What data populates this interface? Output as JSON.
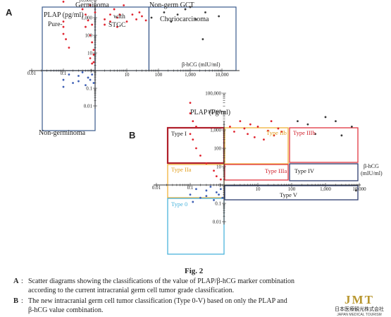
{
  "colors": {
    "red_points": "#e0242f",
    "blue_points": "#3d5fb5",
    "dark_points": "#3a3a3a",
    "frame_blue": "#3a5a8c",
    "type_I": "#b01e2a",
    "type_II": "#f2b23a",
    "type_III": "#e0343e",
    "type_IV": "#2d3b6e",
    "type_0": "#4ab4dc"
  },
  "chart_data": [
    {
      "panel": "A",
      "type": "scatter",
      "x_scale": "log",
      "y_scale": "log",
      "xlabel": "β-hCG (mIU/ml)",
      "ylabel": "PLAP (pg/ml)",
      "xlim": [
        0.01,
        100000
      ],
      "ylim": [
        0.01,
        100000
      ],
      "x_ticks": [
        "0.01",
        "0.1",
        "1",
        "10",
        "100",
        "1,000",
        "10,000"
      ],
      "y_ticks": [
        "0.01",
        "0.1",
        "1",
        "10",
        "100",
        "1,000",
        "10,000"
      ],
      "regions": [
        {
          "group": "Germinoma",
          "label": "Pure",
          "x": [
            0.01,
            1
          ],
          "y": [
            1,
            100000
          ]
        },
        {
          "group": "Germinoma",
          "label": "with STGC",
          "x": [
            1,
            50
          ],
          "y": [
            1,
            100000
          ]
        },
        {
          "group": "Non-germ GCT",
          "label": "Choriocarcinoma",
          "x": [
            50,
            100000
          ],
          "y": [
            1,
            100000
          ]
        },
        {
          "group": "Non-germinoma",
          "label": "",
          "x": [
            0.01,
            1
          ],
          "y": [
            0.01,
            1
          ]
        }
      ],
      "series": [
        {
          "color_key": "red_points",
          "points": [
            [
              0.1,
              30000
            ],
            [
              0.1,
              8000
            ],
            [
              0.1,
              600
            ],
            [
              0.1,
              300
            ],
            [
              0.1,
              120
            ],
            [
              0.12,
              60
            ],
            [
              0.15,
              20
            ],
            [
              0.4,
              3000
            ],
            [
              0.5,
              1500
            ],
            [
              0.6,
              700
            ],
            [
              0.5,
              300
            ],
            [
              0.7,
              100
            ],
            [
              0.8,
              40
            ],
            [
              0.9,
              15
            ],
            [
              0.9,
              8
            ],
            [
              0.7,
              5
            ],
            [
              0.9,
              3
            ],
            [
              0.8,
              2.5
            ],
            [
              0.9,
              12000
            ],
            [
              0.7,
              5000
            ],
            [
              0.8,
              400
            ],
            [
              1,
              2000
            ],
            [
              2,
              800
            ],
            [
              2,
              400
            ],
            [
              3,
              1500
            ],
            [
              3,
              600
            ],
            [
              4,
              3000
            ],
            [
              5,
              1000
            ],
            [
              5,
              300
            ],
            [
              6,
              1500
            ],
            [
              8,
              5000
            ],
            [
              10,
              600
            ],
            [
              15,
              1500
            ],
            [
              20,
              800
            ],
            [
              25,
              2000
            ],
            [
              30,
              1200
            ],
            [
              40,
              700
            ]
          ]
        },
        {
          "color_key": "blue_points",
          "points": [
            [
              0.1,
              0.3
            ],
            [
              0.1,
              0.12
            ],
            [
              0.15,
              0.6
            ],
            [
              0.2,
              0.2
            ],
            [
              0.3,
              0.5
            ],
            [
              0.3,
              0.25
            ],
            [
              0.4,
              0.8
            ],
            [
              0.5,
              0.15
            ],
            [
              0.6,
              0.4
            ],
            [
              0.7,
              0.3
            ],
            [
              0.8,
              0.6
            ],
            [
              0.9,
              0.2
            ]
          ]
        },
        {
          "color_key": "dark_points",
          "points": [
            [
              60,
              1000
            ],
            [
              150,
              2000
            ],
            [
              250,
              600
            ],
            [
              400,
              1500
            ],
            [
              700,
              3000
            ],
            [
              1000,
              4000
            ],
            [
              1500,
              800
            ],
            [
              3000,
              2000
            ],
            [
              8000,
              1200
            ],
            [
              2500,
              60
            ]
          ]
        }
      ]
    },
    {
      "panel": "B",
      "type": "scatter",
      "x_scale": "log",
      "y_scale": "log",
      "xlabel": "β-hCG (mIU/ml)",
      "ylabel": "PLAP (Pg/ml)",
      "xlim": [
        0.01,
        10000
      ],
      "ylim": [
        0.01,
        100000
      ],
      "x_ticks": [
        "0.01",
        "0.1",
        "1",
        "10",
        "100",
        "1,000",
        "10,000"
      ],
      "y_ticks": [
        "0.01",
        "0.1",
        "1",
        "10",
        "100",
        "1,000",
        "10,000",
        "100,000"
      ],
      "regions": [
        {
          "label": "Type I",
          "color_key": "type_I",
          "x": [
            0.01,
            1
          ],
          "y": [
            1000,
            100000
          ]
        },
        {
          "label": "Type IIa",
          "color_key": "type_II",
          "x": [
            0.01,
            1
          ],
          "y": [
            1,
            1000
          ]
        },
        {
          "label": "Type IIb",
          "color_key": "type_II",
          "x": [
            1,
            100
          ],
          "y": [
            1,
            100000
          ]
        },
        {
          "label": "Type IIIa",
          "color_key": "type_III",
          "x": [
            1,
            100
          ],
          "y": [
            1,
            1000
          ]
        },
        {
          "label": "Type IIIb",
          "color_key": "type_III",
          "x": [
            100,
            10000
          ],
          "y": [
            1,
            100000
          ]
        },
        {
          "label": "Type IV",
          "color_key": "type_IV",
          "x": [
            100,
            10000
          ],
          "y": [
            1,
            1000
          ]
        },
        {
          "label": "Type V",
          "color_key": "type_IV",
          "x": [
            1,
            10000
          ],
          "y": [
            0.01,
            1
          ]
        },
        {
          "label": "Type 0",
          "color_key": "type_0",
          "x": [
            0.01,
            1
          ],
          "y": [
            0.01,
            1
          ]
        }
      ],
      "series": [
        {
          "color_key": "red_points",
          "points": [
            [
              0.1,
              30000
            ],
            [
              0.1,
              8000
            ],
            [
              0.12,
              3000
            ],
            [
              0.15,
              1500
            ],
            [
              0.1,
              600
            ],
            [
              0.12,
              300
            ],
            [
              0.15,
              100
            ],
            [
              0.2,
              40
            ],
            [
              0.3,
              15
            ],
            [
              0.5,
              6
            ],
            [
              0.6,
              3
            ],
            [
              0.8,
              2
            ],
            [
              1.5,
              1500
            ],
            [
              2,
              800
            ],
            [
              3,
              3000
            ],
            [
              4,
              1200
            ],
            [
              5,
              600
            ],
            [
              6,
              2000
            ],
            [
              8,
              400
            ],
            [
              10,
              1500
            ],
            [
              15,
              300
            ],
            [
              20,
              900
            ],
            [
              25,
              3000
            ],
            [
              30,
              500
            ],
            [
              40,
              1200
            ],
            [
              50,
              800
            ]
          ]
        },
        {
          "color_key": "blue_points",
          "points": [
            [
              0.1,
              0.3
            ],
            [
              0.12,
              0.12
            ],
            [
              0.15,
              0.6
            ],
            [
              0.2,
              0.2
            ],
            [
              0.3,
              0.5
            ],
            [
              0.3,
              0.25
            ],
            [
              0.4,
              0.8
            ],
            [
              0.5,
              0.15
            ],
            [
              0.6,
              0.4
            ],
            [
              0.7,
              0.3
            ],
            [
              0.8,
              0.6
            ],
            [
              0.9,
              0.2
            ]
          ]
        },
        {
          "color_key": "dark_points",
          "points": [
            [
              150,
              3000
            ],
            [
              300,
              2000
            ],
            [
              500,
              600
            ],
            [
              1000,
              5000
            ],
            [
              2000,
              3000
            ],
            [
              3000,
              500
            ],
            [
              6000,
              1500
            ],
            [
              8000,
              0.5
            ]
          ]
        }
      ]
    }
  ],
  "labels": {
    "panel_a": "A",
    "panel_b": "B",
    "a_germinoma": "Germinoma",
    "a_nongerm": "Non-germ GCT",
    "a_plap": "PLAP (pg/ml)",
    "a_pure": "Pure-",
    "a_with": "with",
    "a_stgc": "STGC",
    "a_chorio": "Choriocarcinoma",
    "a_xlabel": "β-hCG (mIU/ml)",
    "a_nongerminoma": "Non-germinoma",
    "b_plap": "PLAP (Pg/ml)",
    "b_xlabel_1": "β-hCG",
    "b_xlabel_2": "(mIU/ml)",
    "type_I": "Type I",
    "type_IIa": "Type IIa",
    "type_IIb": "Type IIb",
    "type_IIIa": "Type IIIa",
    "type_IIIb": "Type IIIb",
    "type_IV": "Type IV",
    "type_V": "Type V",
    "type_0": "Type 0"
  },
  "caption": {
    "fig_title": "Fig. 2",
    "a_key": "A",
    "a_text_1": "Scatter diagrams showing the classifications of the value of PLAP/β-hCG marker combination",
    "a_text_2": "according to the current intracranial germ cell tumor grade classification.",
    "b_key": "B",
    "b_text_1": "The new intracranial germ cell tumor classification (Type 0-V) based on only the PLAP and",
    "b_text_2": "β-hCG value combination."
  },
  "logo": {
    "letters": "JMT",
    "line1": "日本医療観光株式会社",
    "line2": "JAPAN MEDICAL TOURISM"
  }
}
